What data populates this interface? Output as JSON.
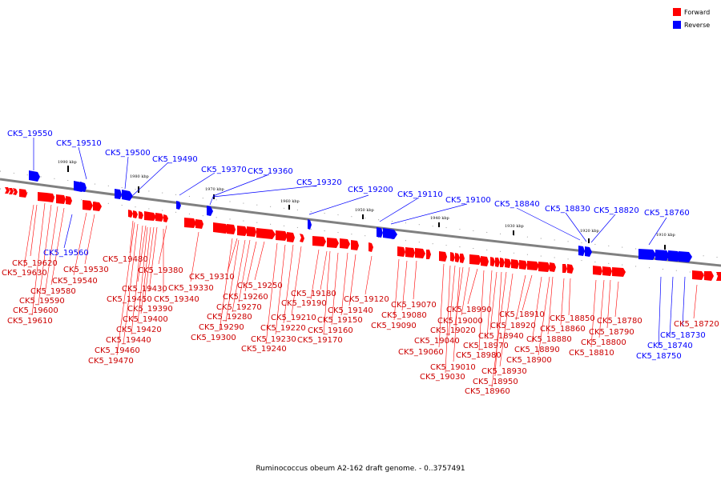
{
  "legend": [
    {
      "label": "Forward",
      "color": "#ff0000"
    },
    {
      "label": "Reverse",
      "color": "#0000ff"
    }
  ],
  "caption": "Ruminococcus obeum A2-162 draft genome. - 0..3757491",
  "colors": {
    "forward": "#ff0000",
    "reverse": "#0000ff",
    "backbone": "#808080"
  },
  "kbp_marks": [
    "1990 kbp",
    "1980 kbp",
    "1970 kbp",
    "1960 kbp",
    "1950 kbp",
    "1940 kbp",
    "1930 kbp",
    "1920 kbp",
    "1910 kbp"
  ],
  "reverse_labels": [
    "CK5_19550",
    "CK5_19510",
    "CK5_19500",
    "CK5_19490",
    "CK5_19370",
    "CK5_19360",
    "CK5_19320",
    "CK5_19200",
    "CK5_19110",
    "CK5_19100",
    "CK5_18840",
    "CK5_18830",
    "CK5_18820",
    "CK5_18760",
    "CK5_19560",
    "CK5_18730",
    "CK5_18740",
    "CK5_18750"
  ],
  "forward_labels": [
    "CK5_19620",
    "CK5_19630",
    "CK5_19530",
    "CK5_19540",
    "CK5_19580",
    "CK5_19590",
    "CK5_19600",
    "CK5_19610",
    "CK5_19480",
    "CK5_19380",
    "CK5_19330",
    "CK5_19430",
    "CK5_19450",
    "CK5_19340",
    "CK5_19390",
    "CK5_19400",
    "CK5_19420",
    "CK5_19440",
    "CK5_19460",
    "CK5_19470",
    "CK5_19310",
    "CK5_19250",
    "CK5_19260",
    "CK5_19270",
    "CK5_19280",
    "CK5_19290",
    "CK5_19300",
    "CK5_19180",
    "CK5_19190",
    "CK5_19210",
    "CK5_19220",
    "CK5_19230",
    "CK5_19240",
    "CK5_19120",
    "CK5_19140",
    "CK5_19150",
    "CK5_19160",
    "CK5_19170",
    "CK5_19070",
    "CK5_19080",
    "CK5_19090",
    "CK5_18990",
    "CK5_19000",
    "CK5_19020",
    "CK5_19040",
    "CK5_19060",
    "CK5_19010",
    "CK5_19030",
    "CK5_18980",
    "CK5_18970",
    "CK5_18940",
    "CK5_18950",
    "CK5_18960",
    "CK5_18930",
    "CK5_18910",
    "CK5_18920",
    "CK5_18890",
    "CK5_18900",
    "CK5_18850",
    "CK5_18860",
    "CK5_18880",
    "CK5_18780",
    "CK5_18790",
    "CK5_18800",
    "CK5_18810",
    "CK5_18720"
  ]
}
